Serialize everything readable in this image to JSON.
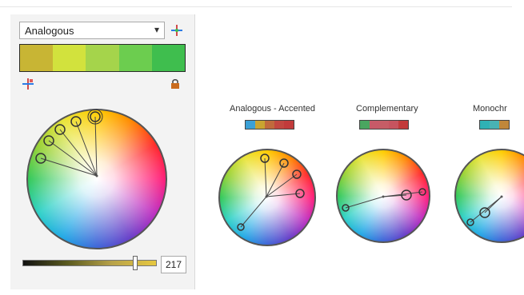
{
  "app": {
    "harmony_select": {
      "value": "Analogous"
    },
    "swatches": [
      "#c8b534",
      "#d2e23d",
      "#a5d44b",
      "#6ccd4f",
      "#3fbe4e"
    ],
    "brightness": {
      "value": "217"
    }
  },
  "previews": [
    {
      "title": "Analogous - Accented",
      "swatches": [
        "#3aa0d6",
        "#c9a430",
        "#c06a3c",
        "#c24740",
        "#c23b3b"
      ]
    },
    {
      "title": "Complementary",
      "swatches": [
        "#4aa660",
        "#c75a68",
        "#c65d66",
        "#c7545f",
        "#c23b3b"
      ]
    },
    {
      "title": "Monochr",
      "swatches": [
        "#2fb1b5",
        "#49b3b4",
        "#c0873a"
      ]
    }
  ],
  "icons": {
    "harmony_tool": "harmony-icon",
    "color_tool": "color-tool-icon",
    "lock": "lock-icon",
    "dropdown": "chevron-down-icon"
  }
}
